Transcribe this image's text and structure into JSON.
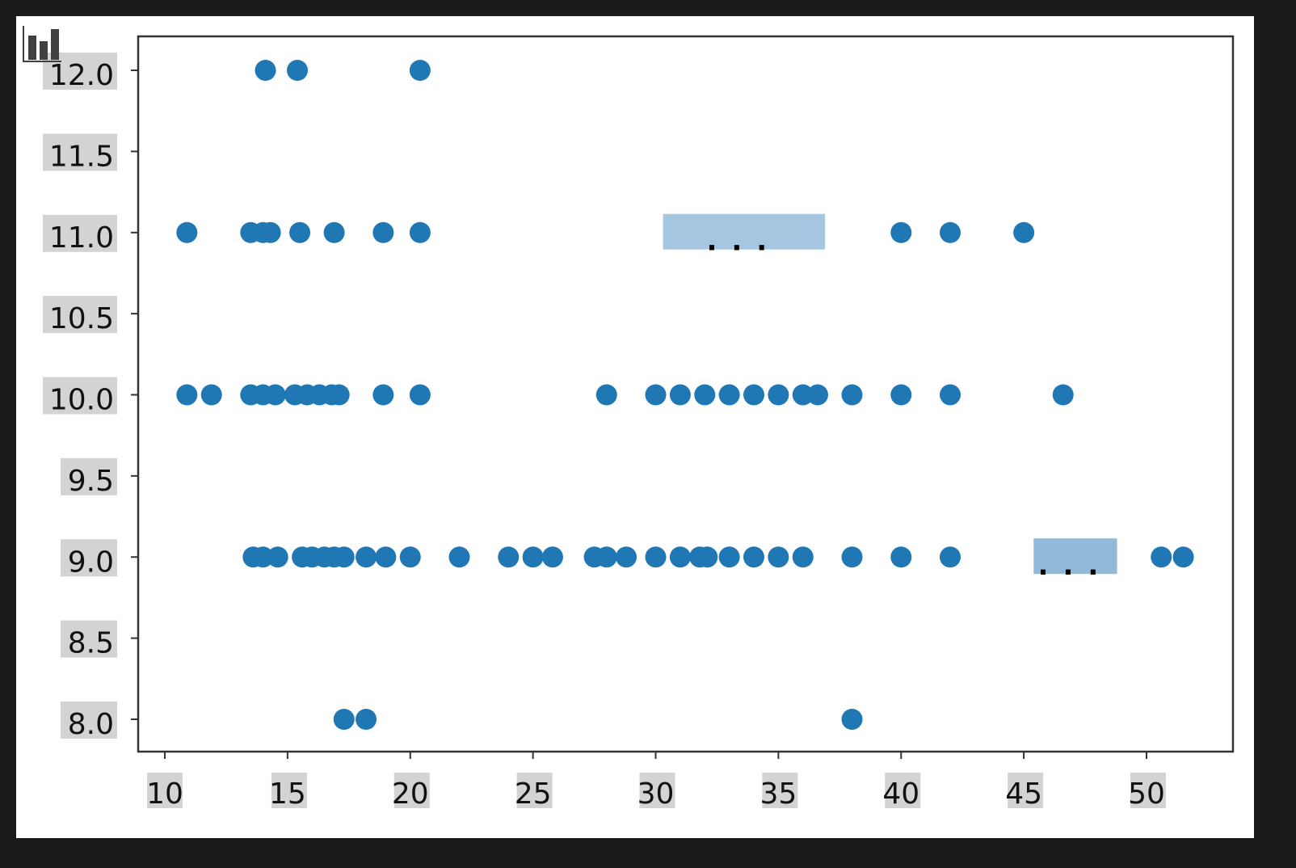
{
  "chart_data": {
    "type": "scatter",
    "title": "",
    "xlabel": "",
    "ylabel": "",
    "xlim": [
      9,
      53.6
    ],
    "ylim": [
      7.8,
      12.2
    ],
    "grid": false,
    "marker_color": "#1f77b4",
    "x_ticks": [
      "10",
      "15",
      "20",
      "25",
      "30",
      "35",
      "40",
      "45",
      "50"
    ],
    "y_ticks": [
      "8.0",
      "8.5",
      "9.0",
      "9.5",
      "10.0",
      "10.5",
      "11.0",
      "11.5",
      "12.0"
    ],
    "points": [
      [
        14.1,
        12
      ],
      [
        15.4,
        12
      ],
      [
        20.4,
        12
      ],
      [
        10.9,
        11
      ],
      [
        13.5,
        11
      ],
      [
        14.0,
        11
      ],
      [
        14.3,
        11
      ],
      [
        15.5,
        11
      ],
      [
        16.9,
        11
      ],
      [
        18.9,
        11
      ],
      [
        20.4,
        11
      ],
      [
        40,
        11
      ],
      [
        42,
        11
      ],
      [
        45,
        11
      ],
      [
        10.9,
        10
      ],
      [
        11.9,
        10
      ],
      [
        13.5,
        10
      ],
      [
        14.0,
        10
      ],
      [
        14.5,
        10
      ],
      [
        15.3,
        10
      ],
      [
        15.8,
        10
      ],
      [
        16.3,
        10
      ],
      [
        16.8,
        10
      ],
      [
        17.1,
        10
      ],
      [
        18.9,
        10
      ],
      [
        20.4,
        10
      ],
      [
        28,
        10
      ],
      [
        30,
        10
      ],
      [
        31,
        10
      ],
      [
        32,
        10
      ],
      [
        33,
        10
      ],
      [
        34,
        10
      ],
      [
        35,
        10
      ],
      [
        36,
        10
      ],
      [
        36.6,
        10
      ],
      [
        38,
        10
      ],
      [
        40,
        10
      ],
      [
        42,
        10
      ],
      [
        46.6,
        10
      ],
      [
        13.6,
        9
      ],
      [
        14.0,
        9
      ],
      [
        14.6,
        9
      ],
      [
        15.6,
        9
      ],
      [
        16.0,
        9
      ],
      [
        16.5,
        9
      ],
      [
        16.9,
        9
      ],
      [
        17.3,
        9
      ],
      [
        18.2,
        9
      ],
      [
        19,
        9
      ],
      [
        20,
        9
      ],
      [
        22,
        9
      ],
      [
        24,
        9
      ],
      [
        25,
        9
      ],
      [
        25.8,
        9
      ],
      [
        27.5,
        9
      ],
      [
        28,
        9
      ],
      [
        28.8,
        9
      ],
      [
        30,
        9
      ],
      [
        31,
        9
      ],
      [
        31.8,
        9
      ],
      [
        32.1,
        9
      ],
      [
        33,
        9
      ],
      [
        34,
        9
      ],
      [
        35,
        9
      ],
      [
        36,
        9
      ],
      [
        38,
        9
      ],
      [
        40,
        9
      ],
      [
        42,
        9
      ],
      [
        50.6,
        9
      ],
      [
        51.5,
        9
      ],
      [
        17.3,
        8
      ],
      [
        18.2,
        8
      ],
      [
        38,
        8
      ]
    ],
    "overlays": [
      {
        "x_range": [
          30.3,
          36.9
        ],
        "y_range": [
          10.9,
          11.1
        ],
        "label": "...",
        "color": "#a4c6e0"
      },
      {
        "x_range": [
          45.4,
          48.8
        ],
        "y_range": [
          8.9,
          9.1
        ],
        "label": "...",
        "color": "#91bad8"
      }
    ]
  },
  "toolbar": {
    "icon": "bar-chart-icon"
  }
}
